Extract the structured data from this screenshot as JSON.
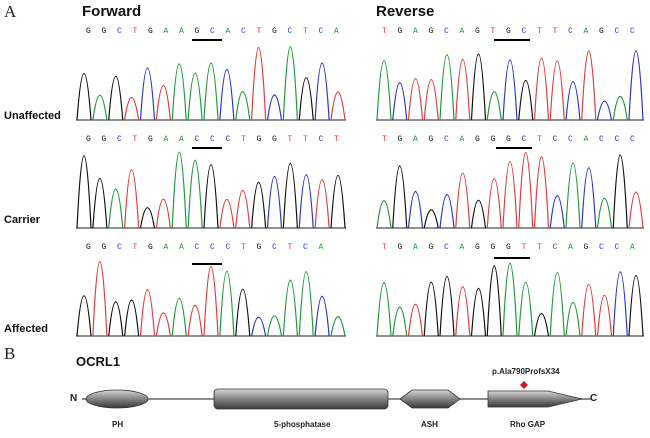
{
  "panel_a": {
    "letter": "A",
    "col_forward": "Forward",
    "col_reverse": "Reverse",
    "rows": [
      {
        "label": "Unaffected",
        "forward_seq": "GGCTGAAGCACTGCTCA",
        "reverse_seq": "TGAGCAGTGCTTCAGCC"
      },
      {
        "label": "Carrier",
        "forward_seq": "GGCTGAACCCTGGTTCT",
        "reverse_seq": "TGAGCAGGGCTCCACCC"
      },
      {
        "label": "Affected",
        "forward_seq": "GGCTGAACCCTGCTCA",
        "reverse_seq": "TGAGCAGGGTTCAGCCA"
      }
    ]
  },
  "panel_b": {
    "letter": "B",
    "gene": "OCRL1",
    "n_term": "N",
    "c_term": "C",
    "mutation": "p.Ala790ProfsX34",
    "domains": [
      "PH",
      "5-phosphatase",
      "ASH",
      "Rho GAP"
    ],
    "colors": {
      "domain_fill": "#9a9a9a",
      "mutation_marker": "#d11a1a"
    }
  },
  "base_colors": {
    "A": "#1e9a3a",
    "C": "#2b35c9",
    "G": "#111111",
    "T": "#e23b3b"
  }
}
